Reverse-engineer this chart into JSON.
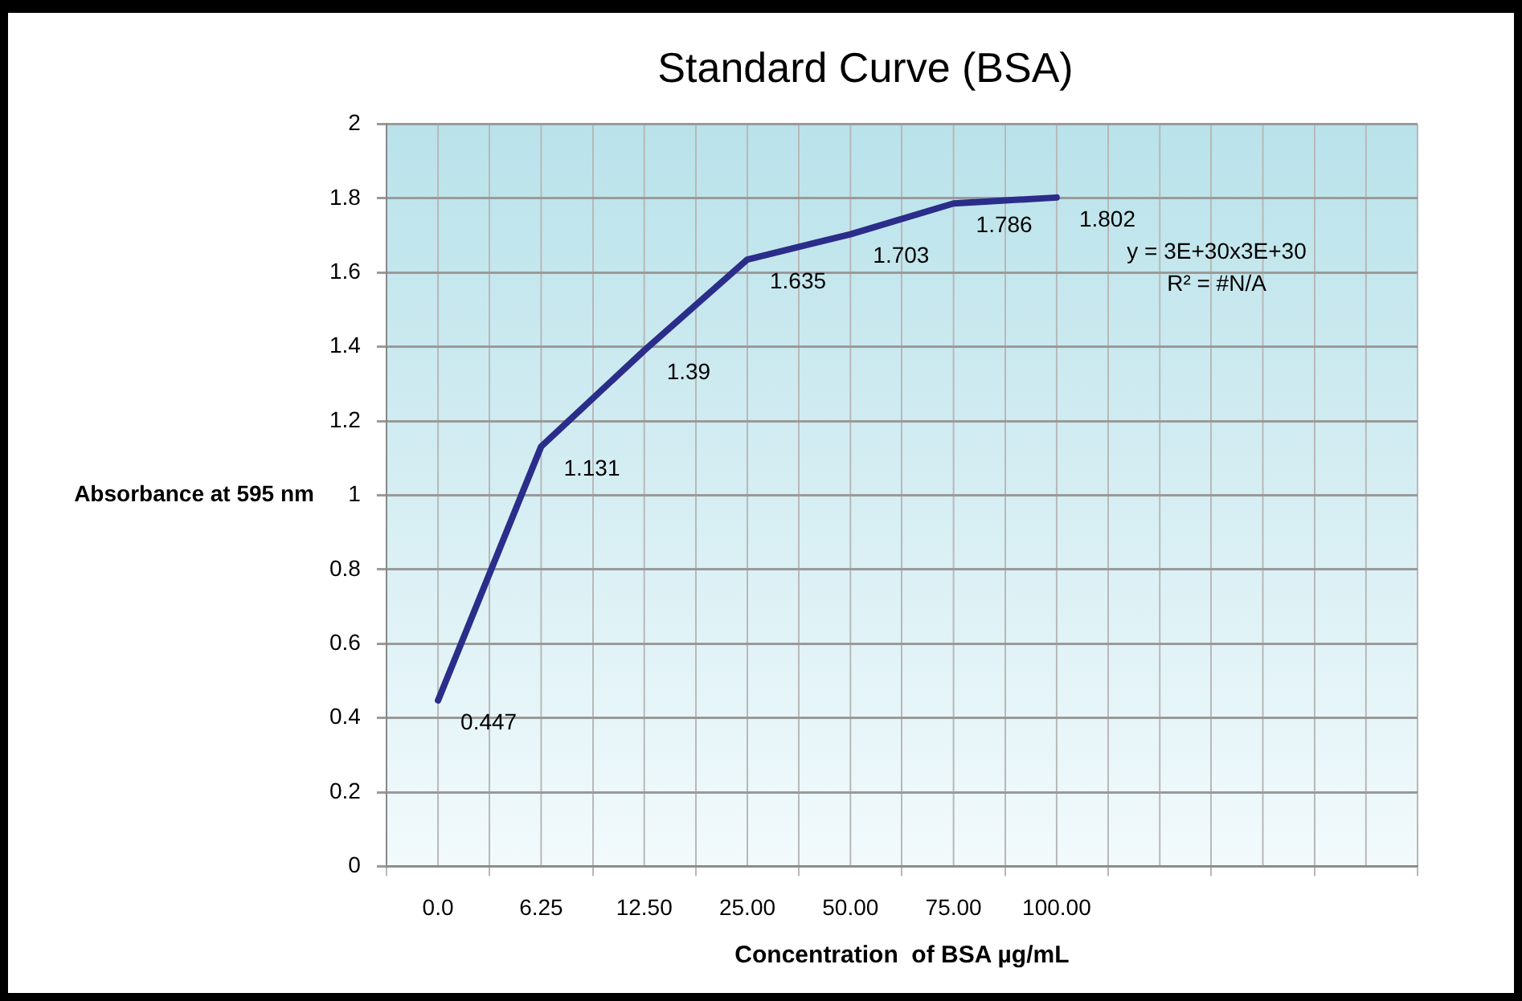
{
  "chart_data": {
    "type": "line",
    "title": "Standard Curve (BSA)",
    "xlabel": "Concentration  of BSA µg/mL",
    "ylabel": "Absorbance at 595 nm",
    "categories": [
      "0.0",
      "6.25",
      "12.50",
      "25.00",
      "50.00",
      "75.00",
      "100.00",
      null,
      null,
      null
    ],
    "series": [
      {
        "color": "#2b2d8a",
        "values": [
          0.447,
          1.131,
          1.39,
          1.635,
          1.703,
          1.786,
          1.802,
          null,
          null,
          null
        ]
      }
    ],
    "ylim": [
      0,
      2
    ],
    "yticks": [
      0,
      0.2,
      0.4,
      0.6,
      0.8,
      1,
      1.2,
      1.4,
      1.6,
      1.8,
      2
    ],
    "annotations": [
      "y = 3E+30x3E+30",
      "R² = #N/A"
    ],
    "data_labels": true,
    "grid": true,
    "legend": false,
    "marker": "none",
    "line_style": "solid"
  }
}
